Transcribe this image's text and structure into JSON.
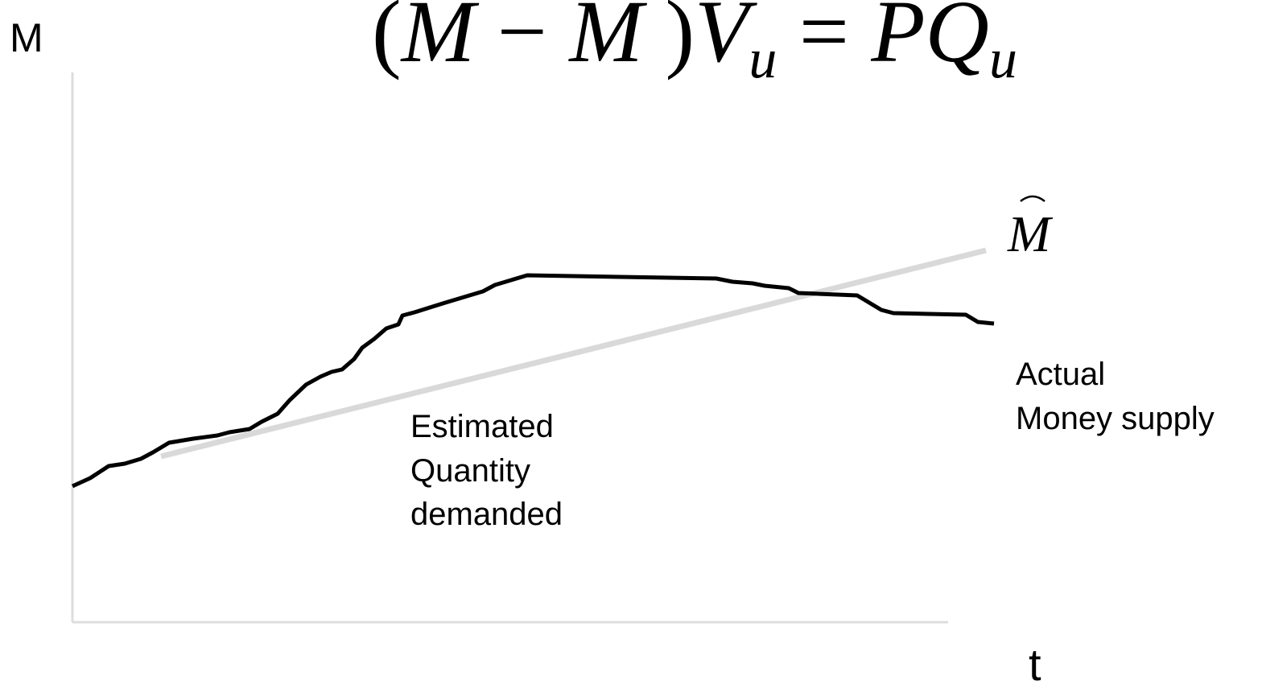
{
  "axes": {
    "y_label": "M",
    "x_label": "t"
  },
  "equation": {
    "parts": [
      "(",
      "M",
      " − ",
      "M",
      " )",
      "V",
      "u",
      " = ",
      "PQ",
      "u"
    ]
  },
  "curves": {
    "estimated": {
      "symbol": "M",
      "label": [
        "Estimated",
        "Quantity",
        "demanded"
      ]
    },
    "actual": {
      "label": [
        "Actual",
        "Money supply"
      ]
    }
  }
}
